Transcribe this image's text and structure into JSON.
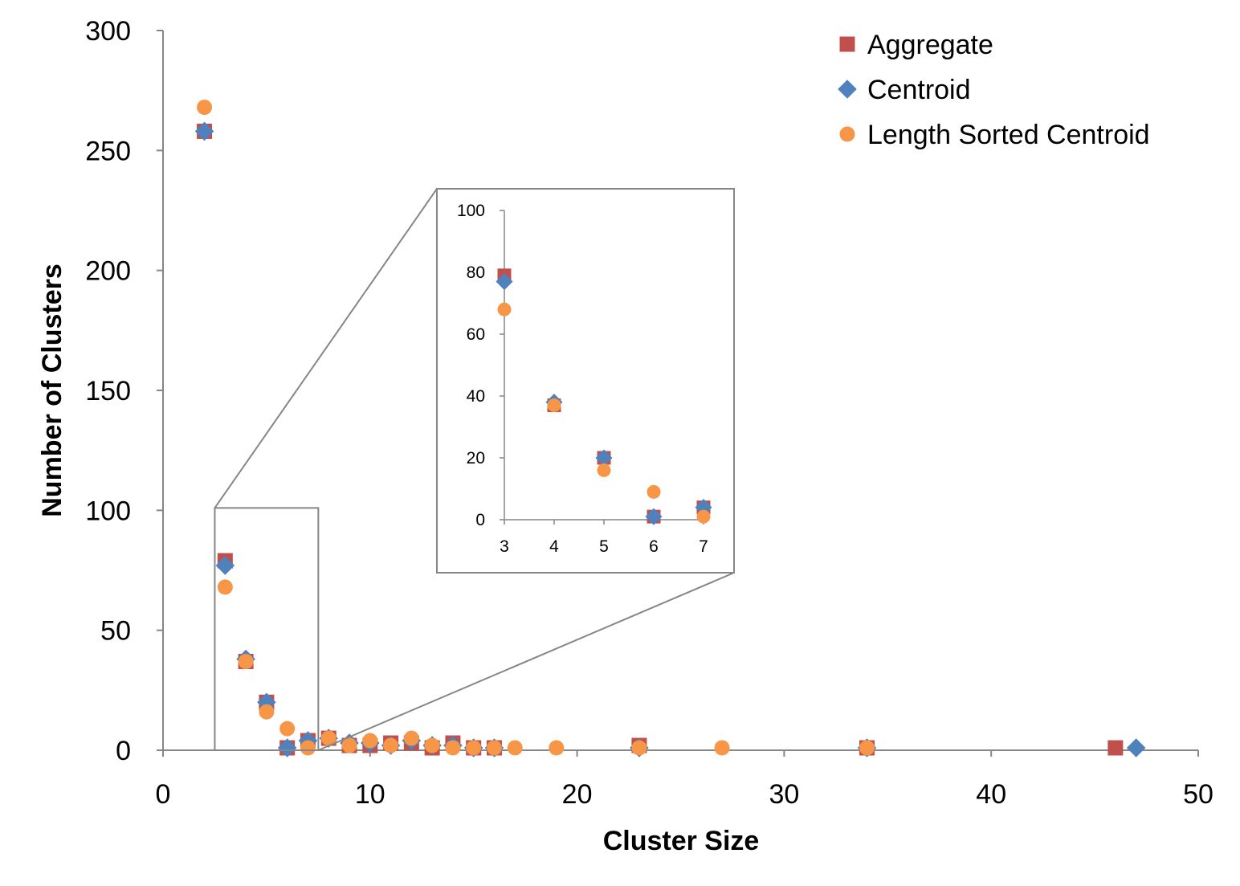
{
  "chart_data": {
    "type": "scatter",
    "xlabel": "Cluster Size",
    "ylabel": "Number of Clusters",
    "xlim": [
      0,
      50
    ],
    "ylim": [
      0,
      300
    ],
    "x_ticks": [
      "0",
      "10",
      "20",
      "30",
      "40",
      "50"
    ],
    "y_ticks": [
      "0",
      "50",
      "100",
      "150",
      "200",
      "250",
      "300"
    ],
    "grid": false,
    "legend_position": "top-right",
    "series": [
      {
        "name": "Aggregate",
        "marker": "square",
        "color": "#c0504d",
        "points": [
          [
            2,
            258
          ],
          [
            3,
            79
          ],
          [
            4,
            37
          ],
          [
            5,
            20
          ],
          [
            6,
            1
          ],
          [
            7,
            4
          ],
          [
            8,
            5
          ],
          [
            9,
            2
          ],
          [
            10,
            2
          ],
          [
            11,
            3
          ],
          [
            12,
            3
          ],
          [
            13,
            1
          ],
          [
            14,
            3
          ],
          [
            15,
            1
          ],
          [
            16,
            1
          ],
          [
            23,
            2
          ],
          [
            34,
            1
          ],
          [
            46,
            1
          ]
        ]
      },
      {
        "name": "Centroid",
        "marker": "diamond",
        "color": "#4f81bd",
        "points": [
          [
            2,
            258
          ],
          [
            3,
            77
          ],
          [
            4,
            38
          ],
          [
            5,
            20
          ],
          [
            6,
            1
          ],
          [
            7,
            4
          ],
          [
            8,
            5
          ],
          [
            9,
            3
          ],
          [
            10,
            3
          ],
          [
            11,
            2
          ],
          [
            12,
            4
          ],
          [
            13,
            2
          ],
          [
            14,
            2
          ],
          [
            15,
            1
          ],
          [
            16,
            1
          ],
          [
            23,
            1
          ],
          [
            34,
            1
          ],
          [
            47,
            1
          ]
        ]
      },
      {
        "name": "Length Sorted Centroid",
        "marker": "circle",
        "color": "#f79646",
        "points": [
          [
            2,
            268
          ],
          [
            3,
            68
          ],
          [
            4,
            37
          ],
          [
            5,
            16
          ],
          [
            6,
            9
          ],
          [
            7,
            1
          ],
          [
            8,
            5
          ],
          [
            9,
            2
          ],
          [
            10,
            4
          ],
          [
            11,
            2
          ],
          [
            12,
            5
          ],
          [
            13,
            2
          ],
          [
            14,
            1
          ],
          [
            15,
            1
          ],
          [
            16,
            1
          ],
          [
            17,
            1
          ],
          [
            19,
            1
          ],
          [
            23,
            1
          ],
          [
            27,
            1
          ],
          [
            34,
            1
          ]
        ]
      }
    ],
    "inset": {
      "xlim": [
        3,
        7
      ],
      "ylim": [
        0,
        100
      ],
      "x_ticks": [
        "3",
        "4",
        "5",
        "6",
        "7"
      ],
      "y_ticks": [
        "0",
        "20",
        "40",
        "60",
        "80",
        "100"
      ],
      "zoom_region": {
        "x": [
          2.5,
          7.5
        ],
        "y": [
          0,
          101
        ]
      },
      "series": [
        {
          "name": "Aggregate",
          "points": [
            [
              3,
              79
            ],
            [
              4,
              37
            ],
            [
              5,
              20
            ],
            [
              6,
              1
            ],
            [
              7,
              4
            ]
          ]
        },
        {
          "name": "Centroid",
          "points": [
            [
              3,
              77
            ],
            [
              4,
              38
            ],
            [
              5,
              20
            ],
            [
              6,
              1
            ],
            [
              7,
              4
            ]
          ]
        },
        {
          "name": "Length Sorted Centroid",
          "points": [
            [
              3,
              68
            ],
            [
              4,
              37
            ],
            [
              5,
              16
            ],
            [
              6,
              9
            ],
            [
              7,
              1
            ]
          ]
        }
      ]
    }
  }
}
